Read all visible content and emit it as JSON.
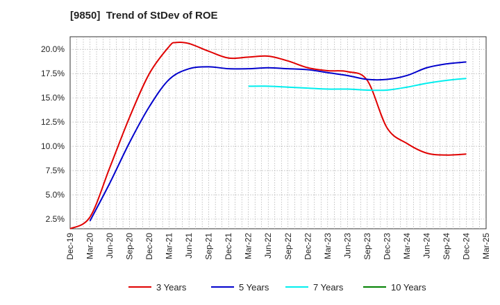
{
  "chart_data": {
    "type": "line",
    "title": "[9850]  Trend of StDev of ROE",
    "xlabel": "",
    "ylabel": "",
    "x_ticks": [
      "Dec-19",
      "Mar-20",
      "Jun-20",
      "Sep-20",
      "Dec-20",
      "Mar-21",
      "Jun-21",
      "Sep-21",
      "Dec-21",
      "Mar-22",
      "Jun-22",
      "Sep-22",
      "Dec-22",
      "Mar-23",
      "Jun-23",
      "Sep-23",
      "Dec-23",
      "Mar-24",
      "Jun-24",
      "Sep-24",
      "Dec-24",
      "Mar-25"
    ],
    "y_ticks": [
      "2.5%",
      "5.0%",
      "7.5%",
      "10.0%",
      "12.5%",
      "15.0%",
      "17.5%",
      "20.0%"
    ],
    "ylim": [
      1.5,
      21.3
    ],
    "grid": true,
    "legend_position": "bottom",
    "series": [
      {
        "name": "3 Years",
        "color": "#e00000",
        "x": [
          "Dec-19",
          "Mar-20",
          "Jun-20",
          "Sep-20",
          "Dec-20",
          "Mar-21",
          "Apr-21",
          "Jun-21",
          "Sep-21",
          "Dec-21",
          "Mar-22",
          "Jun-22",
          "Sep-22",
          "Dec-22",
          "Mar-23",
          "Jun-23",
          "Sep-23",
          "Dec-23",
          "Mar-24",
          "Jun-24",
          "Sep-24",
          "Dec-24"
        ],
        "values": [
          1.5,
          2.7,
          7.8,
          13.0,
          17.5,
          20.3,
          20.7,
          20.6,
          19.8,
          19.1,
          19.2,
          19.3,
          18.8,
          18.1,
          17.8,
          17.7,
          16.8,
          11.9,
          10.3,
          9.3,
          9.1,
          9.2
        ]
      },
      {
        "name": "5 Years",
        "color": "#0000cc",
        "x": [
          "Mar-20",
          "Jun-20",
          "Sep-20",
          "Dec-20",
          "Mar-21",
          "Jun-21",
          "Sep-21",
          "Dec-21",
          "Mar-22",
          "Jun-22",
          "Sep-22",
          "Dec-22",
          "Mar-23",
          "Jun-23",
          "Sep-23",
          "Dec-23",
          "Mar-24",
          "Jun-24",
          "Sep-24",
          "Dec-24"
        ],
        "values": [
          2.3,
          6.2,
          10.4,
          14.1,
          16.9,
          18.0,
          18.2,
          18.0,
          18.0,
          18.1,
          18.0,
          17.9,
          17.6,
          17.3,
          16.9,
          16.9,
          17.3,
          18.1,
          18.5,
          18.7
        ]
      },
      {
        "name": "7 Years",
        "color": "#00eeee",
        "x": [
          "Mar-22",
          "Jun-22",
          "Sep-22",
          "Dec-22",
          "Mar-23",
          "Jun-23",
          "Sep-23",
          "Dec-23",
          "Mar-24",
          "Jun-24",
          "Sep-24",
          "Dec-24"
        ],
        "values": [
          16.2,
          16.2,
          16.1,
          16.0,
          15.9,
          15.9,
          15.8,
          15.8,
          16.1,
          16.5,
          16.8,
          17.0
        ]
      },
      {
        "name": "10 Years",
        "color": "#008000",
        "x": [],
        "values": []
      }
    ]
  }
}
